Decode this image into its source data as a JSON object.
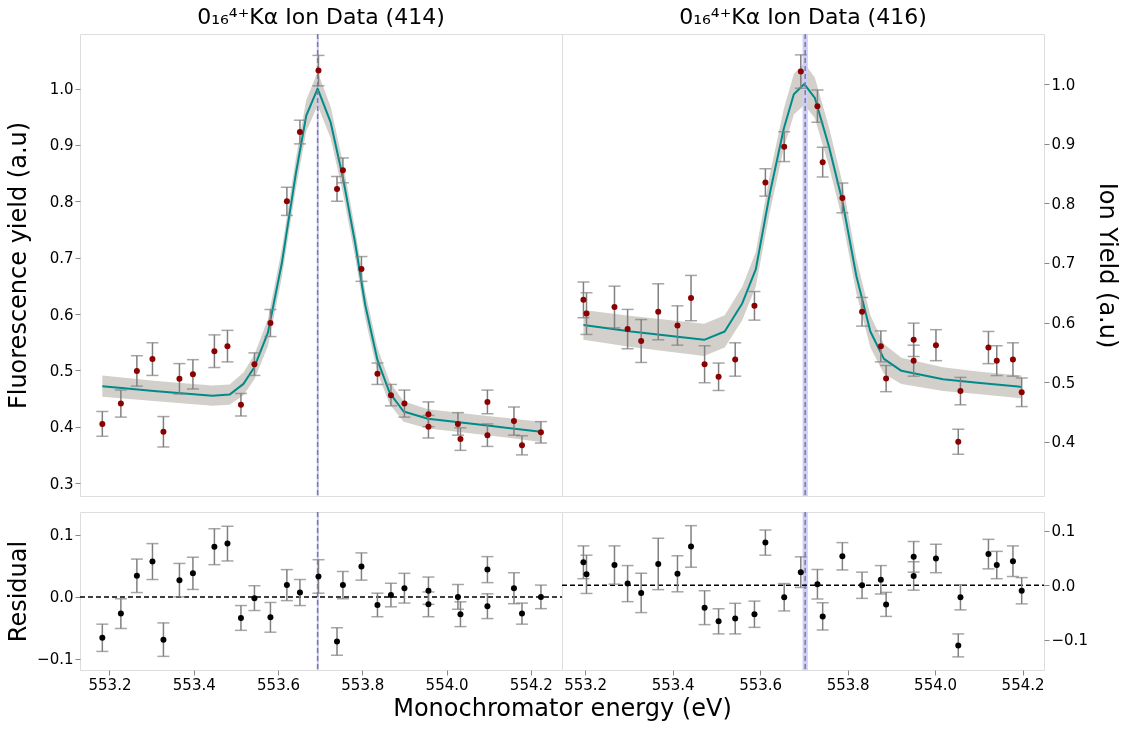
{
  "chart_data": [
    {
      "type": "scatter",
      "title": "0₁₆⁴⁺Kα Ion Data (414)",
      "ylabel": "Fluorescence yield (a.u)",
      "xlim": [
        553.13,
        554.274
      ],
      "ylim": [
        0.277,
        1.097
      ],
      "yticks": [
        0.3,
        0.4,
        0.5,
        0.6,
        0.7,
        0.8,
        0.9,
        {
          "value": 1,
          "label": "1.0"
        }
      ],
      "tick_labels": "y",
      "grid": false,
      "series": [
        {
          "marker": "circle",
          "color": "#8b0000",
          "x": [
            553.183,
            553.227,
            553.265,
            553.302,
            553.328,
            553.366,
            553.398,
            553.449,
            553.48,
            553.512,
            553.544,
            553.582,
            553.621,
            553.652,
            553.696,
            553.74,
            553.754,
            553.798,
            553.836,
            553.868,
            553.9,
            553.957,
            553.957,
            554.027,
            554.033,
            554.097,
            554.097,
            554.16,
            554.179,
            554.224
          ],
          "values": [
            0.405,
            0.441,
            0.499,
            0.52,
            0.391,
            0.485,
            0.493,
            0.534,
            0.543,
            0.439,
            0.511,
            0.584,
            0.8,
            0.923,
            1.032,
            0.822,
            0.855,
            0.68,
            0.494,
            0.456,
            0.441,
            0.422,
            0.4,
            0.405,
            0.378,
            0.444,
            0.385,
            0.41,
            0.367,
            0.39
          ],
          "errors": [
            0.022,
            0.024,
            0.027,
            0.029,
            0.027,
            0.027,
            0.026,
            0.029,
            0.028,
            0.02,
            0.02,
            0.024,
            0.025,
            0.021,
            0.027,
            0.022,
            0.022,
            0.022,
            0.019,
            0.019,
            0.024,
            0.022,
            0.02,
            0.02,
            0.02,
            0.021,
            0.02,
            0.025,
            0.017,
            0.019
          ]
        },
        {
          "type": "line",
          "marker": "none",
          "color": "#008b8b",
          "x": [
            553.183,
            553.312,
            553.444,
            553.485,
            553.518,
            553.544,
            553.576,
            553.609,
            553.642,
            553.667,
            553.694,
            553.725,
            553.754,
            553.783,
            553.807,
            553.836,
            553.865,
            553.898,
            553.956,
            554.097,
            554.224
          ],
          "values": [
            0.472,
            0.463,
            0.455,
            0.457,
            0.476,
            0.506,
            0.567,
            0.69,
            0.848,
            0.952,
            1.0,
            0.94,
            0.842,
            0.726,
            0.616,
            0.518,
            0.46,
            0.427,
            0.414,
            0.402,
            0.391
          ],
          "lower": [
            0.453,
            0.445,
            0.437,
            0.439,
            0.456,
            0.484,
            0.543,
            0.665,
            0.821,
            0.924,
            0.97,
            0.912,
            0.815,
            0.701,
            0.592,
            0.496,
            0.44,
            0.409,
            0.397,
            0.385,
            0.373
          ],
          "upper": [
            0.491,
            0.481,
            0.473,
            0.475,
            0.496,
            0.528,
            0.591,
            0.715,
            0.875,
            0.98,
            1.03,
            0.968,
            0.869,
            0.751,
            0.64,
            0.54,
            0.48,
            0.445,
            0.431,
            0.419,
            0.409
          ]
        }
      ],
      "bands": [
        {
          "axis": "x",
          "from": 553.692,
          "to": 553.697,
          "color": "#ccccff"
        }
      ],
      "ref_lines": [
        {
          "axis": "x",
          "value": 553.694,
          "color": "#808080",
          "line_style": "dashed"
        }
      ]
    },
    {
      "type": "scatter",
      "title": "0₁₆⁴⁺Kα Ion Data (416)",
      "y2label": "Ion Yield (a.u)",
      "xlim": [
        553.147,
        554.249
      ],
      "y2lim": [
        0.309,
        1.084
      ],
      "y2ticks": [
        0.4,
        0.5,
        0.6,
        0.7,
        0.8,
        0.9,
        {
          "value": 1,
          "label": "1.0"
        }
      ],
      "tick_labels": "y",
      "grid": false,
      "series": [
        {
          "axis": "y2",
          "marker": "circle",
          "color": "#8b0000",
          "x": [
            553.196,
            553.203,
            553.267,
            553.297,
            553.328,
            553.367,
            553.411,
            553.442,
            553.473,
            553.505,
            553.543,
            553.587,
            553.612,
            553.655,
            553.693,
            553.731,
            553.743,
            553.788,
            553.833,
            553.876,
            553.888,
            553.951,
            553.951,
            554.002,
            554.053,
            554.058,
            554.122,
            554.141,
            554.178,
            554.198
          ],
          "values": [
            0.638,
            0.615,
            0.626,
            0.589,
            0.569,
            0.618,
            0.595,
            0.641,
            0.53,
            0.509,
            0.538,
            0.628,
            0.835,
            0.895,
            1.021,
            0.963,
            0.869,
            0.809,
            0.618,
            0.56,
            0.506,
            0.571,
            0.536,
            0.562,
            0.4,
            0.485,
            0.558,
            0.536,
            0.538,
            0.483
          ],
          "errors": [
            0.03,
            0.035,
            0.035,
            0.033,
            0.036,
            0.047,
            0.033,
            0.038,
            0.031,
            0.023,
            0.028,
            0.024,
            0.023,
            0.025,
            0.028,
            0.027,
            0.025,
            0.025,
            0.024,
            0.026,
            0.022,
            0.028,
            0.026,
            0.026,
            0.021,
            0.023,
            0.027,
            0.025,
            0.028,
            0.024
          ]
        },
        {
          "type": "line",
          "marker": "none",
          "axis": "y2",
          "color": "#008b8b",
          "x": [
            553.196,
            553.305,
            553.472,
            553.519,
            553.559,
            553.59,
            553.622,
            553.654,
            553.677,
            553.701,
            553.725,
            553.757,
            553.788,
            553.82,
            553.852,
            553.883,
            553.923,
            554.018,
            554.097,
            554.198
          ],
          "values": [
            0.596,
            0.585,
            0.571,
            0.585,
            0.632,
            0.689,
            0.816,
            0.925,
            0.983,
            1.0,
            0.977,
            0.896,
            0.804,
            0.678,
            0.585,
            0.539,
            0.519,
            0.505,
            0.499,
            0.492
          ],
          "lower": [
            0.571,
            0.559,
            0.544,
            0.558,
            0.604,
            0.66,
            0.785,
            0.892,
            0.949,
            0.965,
            0.943,
            0.863,
            0.773,
            0.649,
            0.558,
            0.514,
            0.497,
            0.485,
            0.48,
            0.473
          ],
          "upper": [
            0.621,
            0.611,
            0.598,
            0.612,
            0.66,
            0.718,
            0.847,
            0.958,
            1.017,
            1.035,
            1.011,
            0.929,
            0.835,
            0.707,
            0.612,
            0.564,
            0.541,
            0.525,
            0.518,
            0.511
          ]
        }
      ],
      "bands": [
        {
          "axis": "x",
          "from": 553.697,
          "to": 553.709,
          "color": "#ccccff"
        }
      ],
      "ref_lines": [
        {
          "axis": "x",
          "value": 553.703,
          "color": "#808080",
          "line_style": "dashed"
        }
      ]
    },
    {
      "type": "scatter",
      "ylabel": "Residual",
      "xlabel": "Monochromator energy (eV)",
      "xlim": [
        553.13,
        554.274
      ],
      "ylim": [
        -0.118,
        0.137
      ],
      "yticks": [
        {
          "value": -0.1,
          "label": "−0.1"
        },
        {
          "value": 0,
          "label": "0.0"
        },
        0.1
      ],
      "xticks": [
        553.2,
        553.4,
        553.6,
        553.8,
        {
          "value": 554,
          "label": "554.0"
        },
        554.2
      ],
      "grid": false,
      "marker": "circle",
      "series": [
        {
          "color": "#000000",
          "x": [
            553.183,
            553.227,
            553.265,
            553.302,
            553.328,
            553.366,
            553.398,
            553.449,
            553.48,
            553.512,
            553.544,
            553.582,
            553.621,
            553.652,
            553.696,
            553.74,
            553.754,
            553.798,
            553.836,
            553.868,
            553.9,
            553.957,
            553.957,
            554.027,
            554.033,
            554.097,
            554.097,
            554.16,
            554.179,
            554.224
          ],
          "values": [
            -0.066,
            -0.027,
            0.034,
            0.057,
            -0.069,
            0.027,
            0.038,
            0.081,
            0.086,
            -0.034,
            -0.002,
            -0.033,
            0.019,
            0.007,
            0.033,
            -0.072,
            0.019,
            0.049,
            -0.013,
            0.003,
            0.014,
            0.01,
            -0.012,
            0.0,
            -0.028,
            0.044,
            -0.015,
            0.014,
            -0.027,
            0.0
          ],
          "errors": [
            0.022,
            0.024,
            0.027,
            0.029,
            0.027,
            0.027,
            0.026,
            0.029,
            0.028,
            0.02,
            0.02,
            0.024,
            0.025,
            0.021,
            0.027,
            0.022,
            0.022,
            0.022,
            0.019,
            0.019,
            0.024,
            0.022,
            0.02,
            0.02,
            0.02,
            0.021,
            0.02,
            0.025,
            0.017,
            0.019
          ]
        }
      ],
      "bands": [
        {
          "axis": "x",
          "from": 553.692,
          "to": 553.697,
          "color": "#ccccff"
        }
      ],
      "ref_lines": [
        {
          "axis": "x",
          "value": 553.694,
          "color": "#808080",
          "line_style": "dashed"
        },
        {
          "axis": "y",
          "value": 0,
          "color": "#000000",
          "line_style": "dashed"
        }
      ]
    },
    {
      "type": "scatter",
      "xlim": [
        553.147,
        554.249
      ],
      "y2lim": [
        -0.155,
        0.134
      ],
      "y2ticks": [
        {
          "value": -0.1,
          "label": "−0.1"
        },
        {
          "value": 0,
          "label": "0.0"
        },
        0.1
      ],
      "xticks": [
        553.2,
        553.4,
        553.6,
        553.8,
        {
          "value": 554,
          "label": "554.0"
        },
        554.2
      ],
      "grid": false,
      "marker": "circle",
      "series": [
        {
          "axis": "y2",
          "color": "#000000",
          "x": [
            553.196,
            553.203,
            553.267,
            553.297,
            553.328,
            553.367,
            553.411,
            553.442,
            553.473,
            553.505,
            553.543,
            553.587,
            553.612,
            553.655,
            553.693,
            553.731,
            553.743,
            553.788,
            553.833,
            553.876,
            553.888,
            553.951,
            553.951,
            554.002,
            554.053,
            554.058,
            554.122,
            554.141,
            554.178,
            554.198
          ],
          "values": [
            0.042,
            0.02,
            0.037,
            0.003,
            -0.014,
            0.039,
            0.021,
            0.071,
            -0.041,
            -0.066,
            -0.061,
            -0.053,
            0.078,
            -0.022,
            0.024,
            0.002,
            -0.057,
            0.053,
            0.0,
            0.01,
            -0.035,
            0.052,
            0.017,
            0.049,
            -0.11,
            -0.022,
            0.057,
            0.037,
            0.044,
            -0.01
          ],
          "errors": [
            0.03,
            0.035,
            0.035,
            0.033,
            0.036,
            0.047,
            0.033,
            0.038,
            0.031,
            0.023,
            0.028,
            0.024,
            0.023,
            0.025,
            0.028,
            0.027,
            0.025,
            0.025,
            0.024,
            0.026,
            0.022,
            0.028,
            0.026,
            0.026,
            0.021,
            0.023,
            0.027,
            0.025,
            0.028,
            0.024
          ]
        }
      ],
      "bands": [
        {
          "axis": "x",
          "from": 553.697,
          "to": 553.709,
          "color": "#ccccff"
        }
      ],
      "ref_lines": [
        {
          "axis": "x",
          "value": 553.703,
          "color": "#808080",
          "line_style": "dashed"
        },
        {
          "axis": "y2",
          "value": 0,
          "color": "#000000",
          "line_style": "dashed"
        }
      ]
    }
  ]
}
